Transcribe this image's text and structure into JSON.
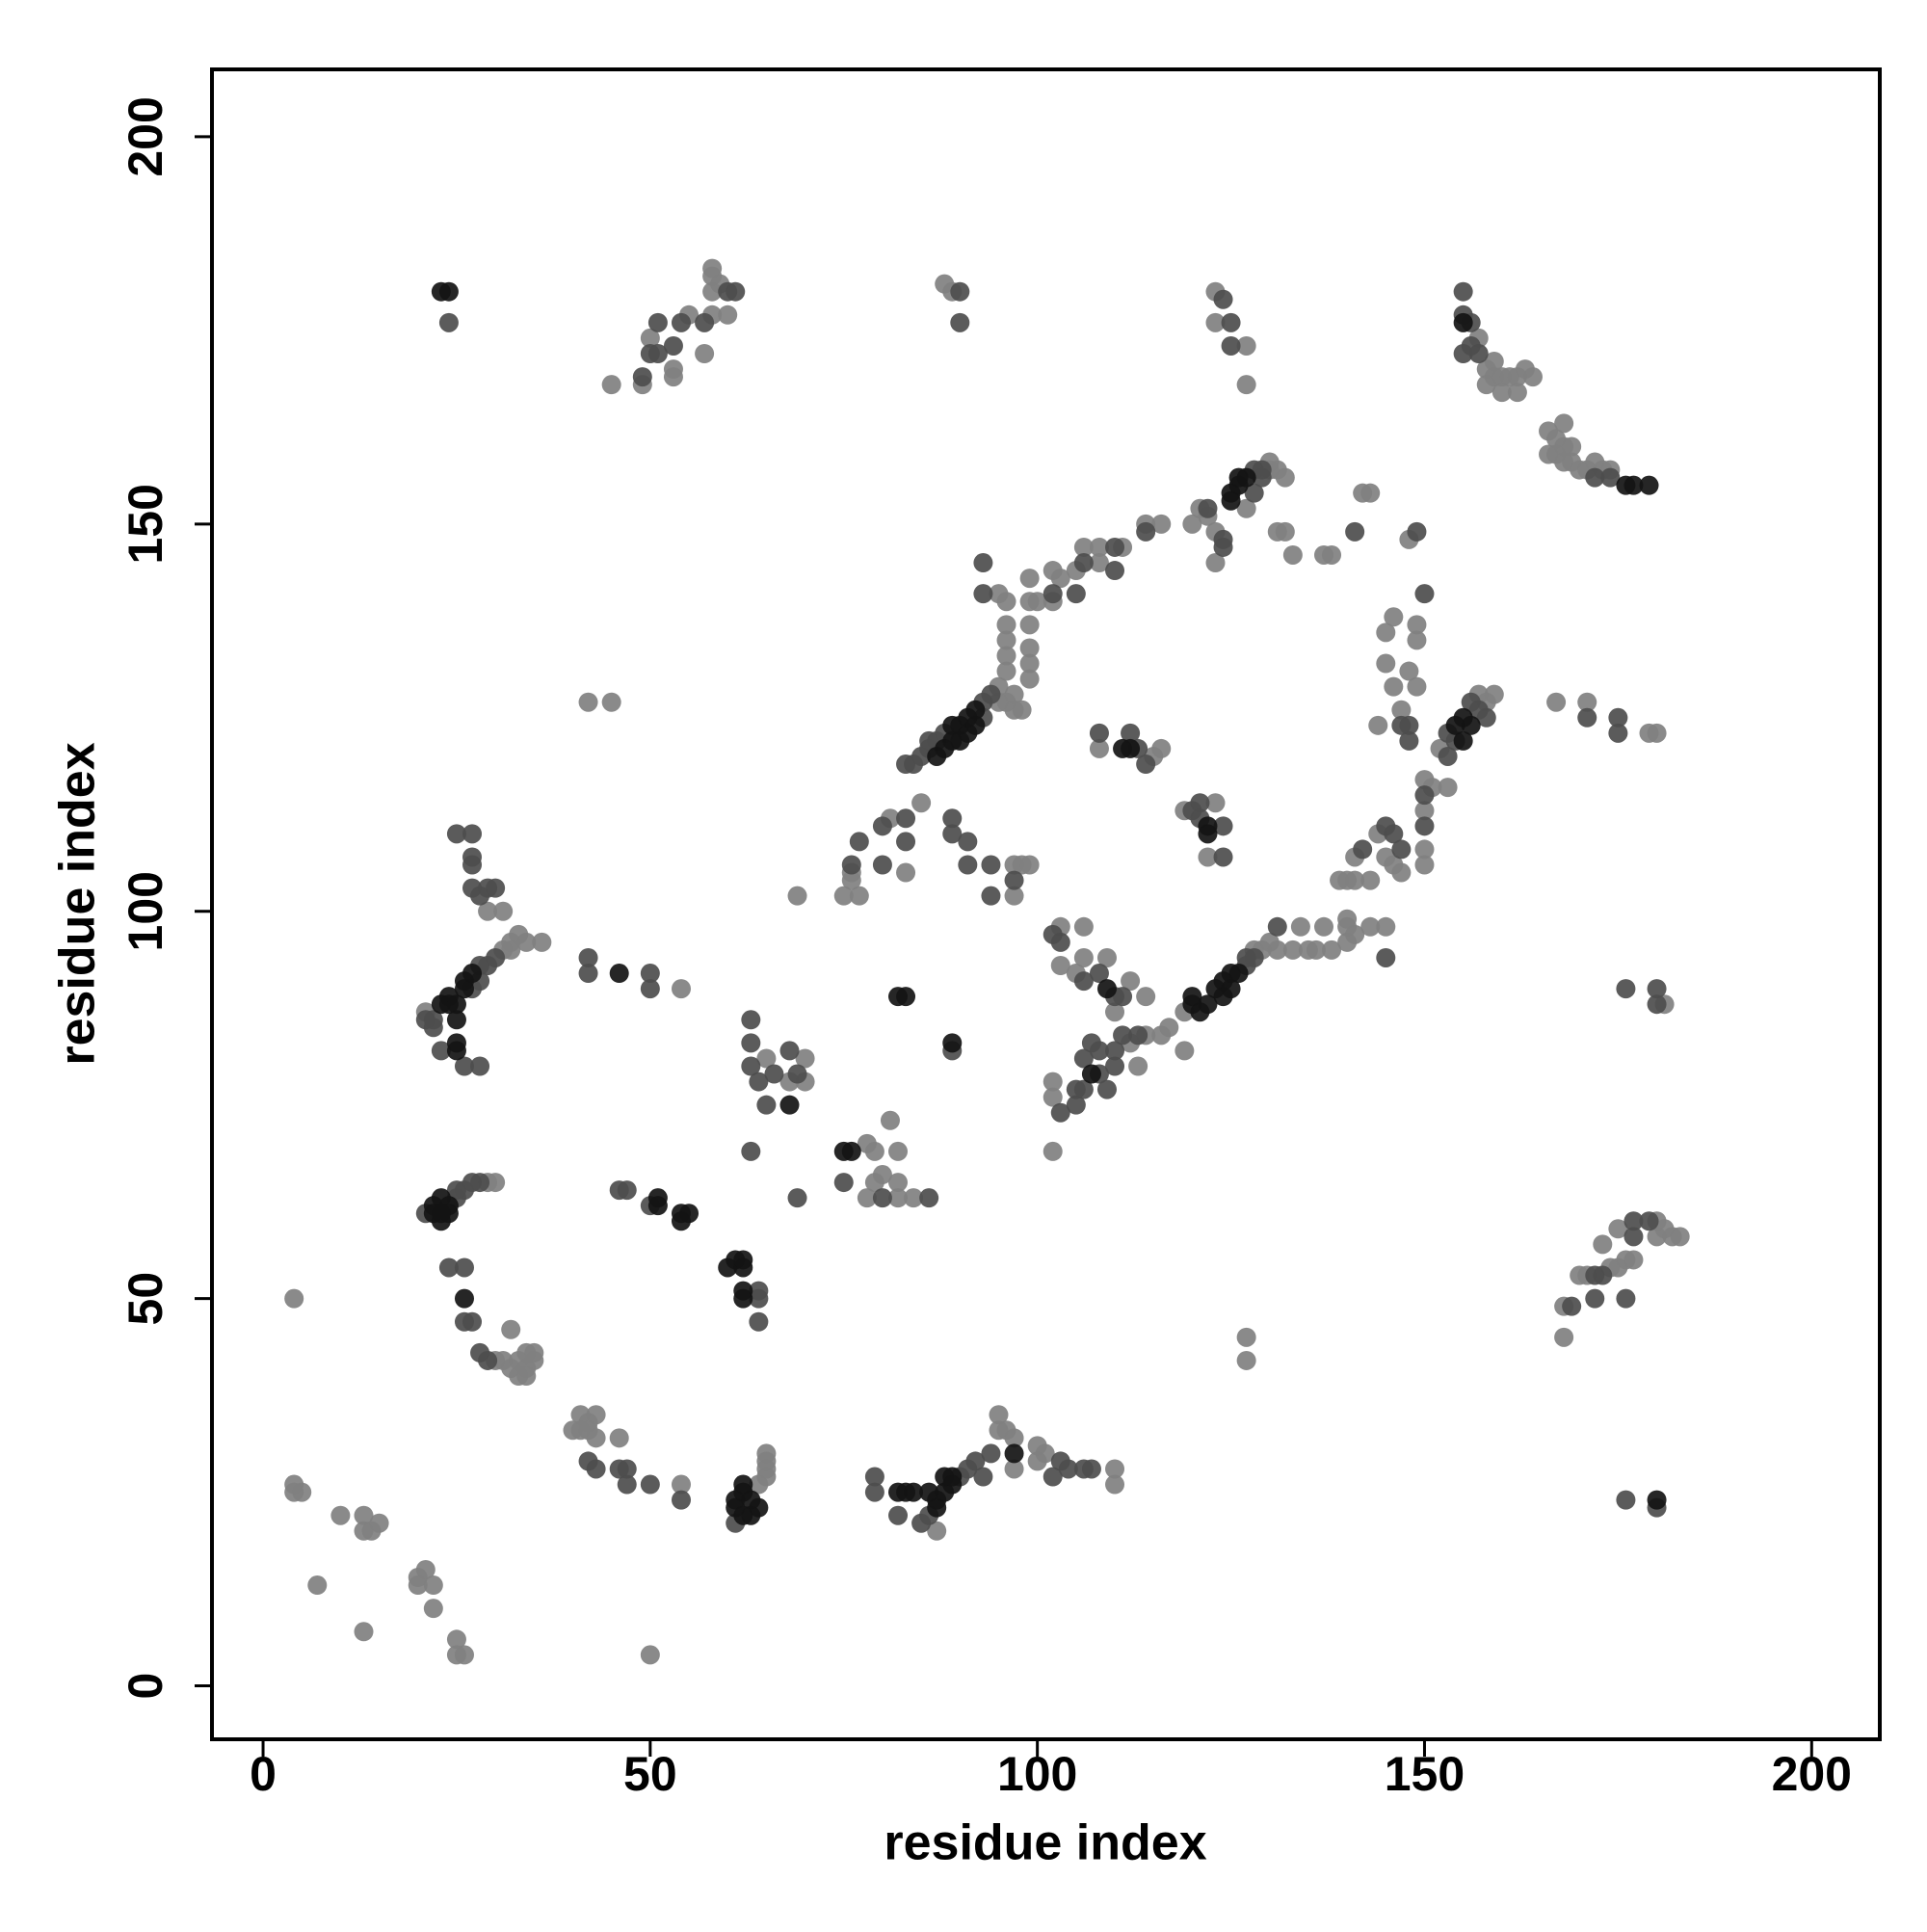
{
  "chart_data": {
    "type": "scatter",
    "xlabel": "residue index",
    "ylabel": "residue index",
    "xlim": [
      -6.6,
      208.8
    ],
    "ylim": [
      -6.9,
      208.7
    ],
    "xticks": [
      0,
      50,
      100,
      150,
      200
    ],
    "yticks": [
      0,
      50,
      100,
      150,
      200
    ],
    "grid": false,
    "series": [
      {
        "color": "#808080",
        "x": [
          4,
          4,
          5,
          4,
          7,
          10,
          13,
          13,
          14,
          15,
          13,
          20,
          20,
          21,
          22,
          22,
          25,
          25,
          26,
          50,
          29,
          30,
          30,
          31,
          32,
          32,
          33,
          33,
          34,
          34,
          35,
          35,
          34,
          40,
          41,
          41,
          42,
          42,
          43,
          43,
          46,
          54,
          64,
          65,
          65,
          65,
          65,
          87,
          95,
          95,
          96,
          97,
          97,
          100,
          100,
          101,
          110,
          110,
          31,
          32,
          33,
          34,
          36,
          32,
          29,
          31,
          21,
          54,
          42,
          45,
          65,
          68,
          70,
          70,
          78,
          79,
          79,
          80,
          78,
          82,
          82,
          82,
          84,
          81,
          69,
          75,
          76,
          76,
          77,
          81,
          83,
          85,
          97,
          98,
          97,
          99,
          95,
          95,
          96,
          96,
          96,
          96,
          96,
          97,
          98,
          99,
          99,
          99,
          99,
          99,
          99,
          100,
          95,
          102,
          102,
          103,
          105,
          106,
          108,
          108,
          111,
          114,
          116,
          120,
          121,
          122,
          123,
          123,
          130,
          131,
          130,
          132,
          127,
          131,
          132,
          133,
          137,
          138,
          142,
          143,
          148,
          123,
          123,
          127,
          127,
          88,
          89,
          45,
          49,
          50,
          55,
          57,
          58,
          58,
          58,
          58,
          59,
          60,
          53,
          53,
          157,
          158,
          159,
          158,
          159,
          160,
          161,
          162,
          163,
          164,
          160,
          162,
          166,
          166,
          167,
          167,
          168,
          168,
          168,
          169,
          169,
          170,
          171,
          172,
          173,
          174,
          144,
          145,
          145,
          146,
          146,
          147,
          148,
          149,
          149,
          149,
          151,
          152,
          153,
          157,
          158,
          159,
          167,
          171,
          179,
          180,
          168,
          168,
          170,
          171,
          173,
          174,
          175,
          176,
          177,
          175,
          180,
          180,
          181,
          182,
          183,
          181,
          127,
          127,
          119,
          128,
          129,
          130,
          131,
          133,
          134,
          135,
          136,
          137,
          138,
          140,
          140,
          140,
          141,
          143,
          145,
          116,
          119,
          117,
          139,
          140,
          141,
          141,
          143,
          144,
          145,
          146,
          147,
          150,
          150,
          150,
          103,
          103,
          105,
          106,
          106,
          110,
          112,
          114,
          109,
          102,
          102,
          112,
          113,
          114,
          102,
          108,
          115,
          116,
          122,
          119,
          123,
          150,
          96,
          97
        ],
        "values": [
          50,
          26,
          25,
          25,
          13,
          22,
          22,
          20,
          20,
          21,
          7,
          14,
          13,
          15,
          13,
          10,
          6,
          4,
          4,
          4,
          65,
          65,
          42,
          42,
          46,
          41,
          40,
          42,
          43,
          41,
          42,
          43,
          40,
          33,
          33,
          35,
          34,
          33,
          35,
          32,
          32,
          26,
          26,
          27,
          28,
          29,
          30,
          20,
          33,
          35,
          33,
          32,
          28,
          31,
          29,
          30,
          28,
          26,
          95,
          96,
          97,
          96,
          96,
          95,
          100,
          100,
          87,
          90,
          127,
          127,
          81,
          78,
          78,
          81,
          70,
          69,
          65,
          66,
          63,
          65,
          69,
          63,
          63,
          73,
          102,
          102,
          104,
          105,
          102,
          112,
          105,
          114,
          102,
          106,
          106,
          106,
          129,
          127,
          131,
          133,
          135,
          137,
          140,
          128,
          126,
          130,
          132,
          134,
          137,
          140,
          143,
          140,
          141,
          140,
          144,
          143,
          144,
          147,
          147,
          145,
          147,
          150,
          150,
          150,
          152,
          151,
          149,
          145,
          157,
          157,
          158,
          156,
          152,
          149,
          149,
          146,
          146,
          146,
          154,
          154,
          148,
          180,
          176,
          173,
          168,
          181,
          180,
          168,
          168,
          174,
          177,
          172,
          177,
          180,
          182,
          183,
          181,
          177,
          170,
          169,
          174,
          170,
          171,
          168,
          169,
          169,
          169,
          169,
          170,
          169,
          167,
          167,
          159,
          162,
          161,
          159,
          163,
          160,
          158,
          160,
          158,
          157,
          157,
          158,
          157,
          157,
          124,
          136,
          132,
          138,
          129,
          126,
          131,
          129,
          135,
          137,
          116,
          121,
          116,
          128,
          127,
          128,
          127,
          127,
          123,
          123,
          49,
          45,
          53,
          53,
          57,
          54,
          54,
          55,
          55,
          59,
          60,
          58,
          59,
          58,
          58,
          88,
          45,
          42,
          87,
          95,
          95,
          96,
          95,
          95,
          98,
          95,
          95,
          98,
          95,
          96,
          98,
          99,
          97,
          98,
          98,
          84,
          82,
          85,
          104,
          104,
          104,
          107,
          104,
          110,
          107,
          106,
          105,
          108,
          106,
          113,
          98,
          93,
          92,
          98,
          94,
          87,
          91,
          89,
          94,
          78,
          76,
          83,
          80,
          84,
          69,
          121,
          120,
          121,
          107,
          113,
          114,
          117,
          127,
          126
        ]
      },
      {
        "color": "#4d4d4d",
        "x": [
          21,
          25,
          25,
          26,
          27,
          28,
          24,
          26,
          26,
          27,
          28,
          29,
          42,
          43,
          46,
          47,
          47,
          50,
          54,
          61,
          79,
          79,
          82,
          85,
          86,
          90,
          91,
          92,
          93,
          94,
          102,
          103,
          104,
          106,
          107,
          21,
          22,
          22,
          27,
          28,
          28,
          29,
          30,
          26,
          28,
          23,
          25,
          27,
          27,
          27,
          27,
          28,
          29,
          30,
          42,
          42,
          50,
          50,
          46,
          47,
          50,
          64,
          64,
          64,
          63,
          63,
          63,
          64,
          66,
          65,
          63,
          68,
          69,
          69,
          75,
          80,
          86,
          76,
          77,
          80,
          80,
          83,
          83,
          89,
          89,
          89,
          91,
          91,
          94,
          94,
          97,
          83,
          84,
          85,
          86,
          86,
          87,
          88,
          93,
          93,
          94,
          93,
          93,
          102,
          105,
          106,
          110,
          110,
          114,
          122,
          124,
          124,
          128,
          129,
          128,
          129,
          141,
          149,
          124,
          125,
          125,
          24,
          90,
          90,
          49,
          50,
          51,
          51,
          53,
          54,
          57,
          60,
          61,
          155,
          155,
          156,
          156,
          155,
          157,
          172,
          174,
          171,
          175,
          175,
          153,
          154,
          156,
          157,
          158,
          150,
          148,
          148,
          147,
          153,
          172,
          172,
          173,
          176,
          177,
          177,
          179,
          169,
          176,
          180,
          176,
          180,
          180,
          127,
          127,
          128,
          131,
          102,
          103,
          106,
          108,
          110,
          111,
          103,
          105,
          105,
          106,
          106,
          107,
          108,
          108,
          109,
          110,
          110,
          111,
          113,
          108,
          112,
          113,
          114,
          120,
          121,
          121,
          124,
          124,
          145,
          146,
          147,
          150,
          150,
          142,
          145
        ],
        "values": [
          61,
          63,
          64,
          64,
          65,
          65,
          54,
          54,
          47,
          47,
          43,
          42,
          29,
          28,
          28,
          26,
          28,
          26,
          24,
          21,
          27,
          25,
          22,
          21,
          22,
          27,
          28,
          29,
          27,
          30,
          27,
          29,
          28,
          28,
          28,
          86,
          85,
          86,
          90,
          91,
          93,
          93,
          94,
          80,
          80,
          82,
          110,
          110,
          107,
          106,
          103,
          102,
          103,
          103,
          94,
          92,
          92,
          90,
          64,
          64,
          62,
          51,
          50,
          47,
          86,
          83,
          80,
          78,
          79,
          75,
          69,
          82,
          79,
          63,
          65,
          63,
          63,
          106,
          109,
          106,
          111,
          112,
          109,
          82,
          112,
          110,
          109,
          106,
          106,
          102,
          104,
          119,
          119,
          120,
          121,
          122,
          122,
          123,
          127,
          125,
          128,
          145,
          141,
          141,
          141,
          145,
          147,
          144,
          149,
          152,
          148,
          147,
          157,
          157,
          154,
          156,
          149,
          149,
          179,
          176,
          173,
          176,
          180,
          176,
          169,
          172,
          172,
          176,
          173,
          176,
          176,
          180,
          180,
          180,
          177,
          176,
          173,
          172,
          172,
          156,
          156,
          125,
          125,
          123,
          123,
          122,
          127,
          126,
          125,
          141,
          124,
          122,
          124,
          120,
          50,
          53,
          53,
          50,
          58,
          60,
          60,
          49,
          24,
          23,
          90,
          90,
          88,
          93,
          94,
          94,
          98,
          97,
          96,
          91,
          92,
          89,
          89,
          74,
          75,
          77,
          77,
          81,
          83,
          82,
          79,
          77,
          80,
          82,
          84,
          84,
          123,
          123,
          121,
          119,
          113,
          114,
          112,
          107,
          111,
          111,
          110,
          108,
          111,
          115,
          108,
          94
        ]
      },
      {
        "color": "#141414",
        "x": [
          22,
          22,
          23,
          23,
          24,
          24,
          23,
          26,
          51,
          51,
          54,
          55,
          54,
          61,
          61,
          62,
          62,
          62,
          63,
          63,
          64,
          82,
          83,
          84,
          86,
          87,
          87,
          88,
          88,
          89,
          89,
          97,
          23,
          24,
          24,
          25,
          25,
          26,
          26,
          27,
          25,
          25,
          46,
          60,
          61,
          62,
          62,
          62,
          62,
          68,
          75,
          76,
          82,
          83,
          89,
          87,
          88,
          89,
          89,
          90,
          90,
          91,
          91,
          92,
          92,
          125,
          126,
          126,
          127,
          125,
          154,
          155,
          155,
          156,
          123,
          124,
          124,
          125,
          125,
          126,
          122,
          121,
          120,
          120,
          111,
          112,
          107,
          109,
          122,
          122,
          23,
          24,
          155,
          176,
          177,
          179,
          180
        ],
        "values": [
          62,
          61,
          63,
          60,
          62,
          61,
          61,
          50,
          63,
          62,
          61,
          61,
          60,
          24,
          23,
          22,
          25,
          26,
          24,
          22,
          23,
          25,
          25,
          25,
          25,
          24,
          23,
          25,
          27,
          26,
          27,
          30,
          88,
          88,
          89,
          88,
          86,
          90,
          91,
          92,
          82,
          83,
          92,
          54,
          55,
          54,
          55,
          51,
          50,
          75,
          69,
          69,
          89,
          89,
          83,
          120,
          121,
          122,
          124,
          124,
          122,
          125,
          123,
          126,
          124,
          154,
          155,
          156,
          156,
          153,
          124,
          125,
          122,
          124,
          90,
          91,
          89,
          92,
          90,
          92,
          88,
          87,
          88,
          89,
          121,
          121,
          79,
          90,
          110,
          111,
          180,
          180,
          176,
          155,
          155,
          155,
          24
        ]
      }
    ]
  }
}
